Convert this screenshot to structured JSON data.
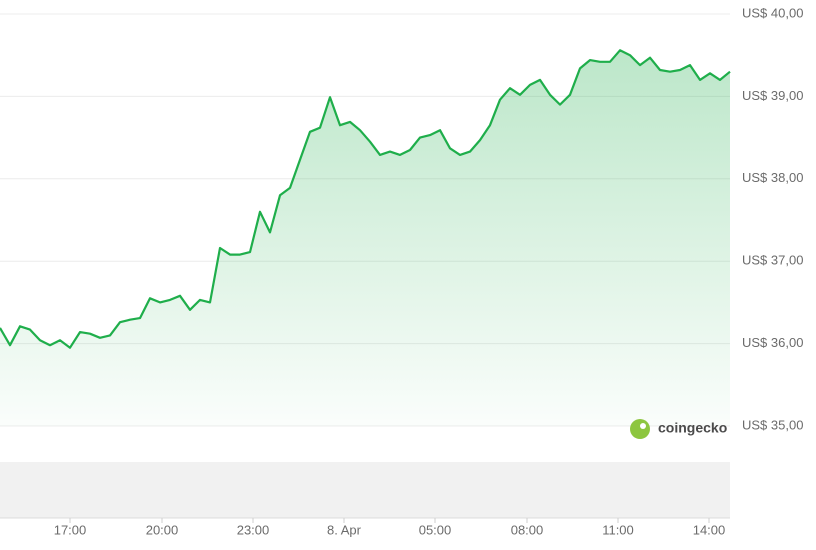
{
  "chart_data": {
    "type": "area",
    "color": "#1fae4b",
    "values": [
      36.19,
      35.98,
      36.21,
      36.17,
      36.04,
      35.98,
      36.04,
      35.95,
      36.14,
      36.12,
      36.07,
      36.1,
      36.26,
      36.29,
      36.31,
      36.55,
      36.5,
      36.53,
      36.58,
      36.41,
      36.53,
      36.5,
      37.16,
      37.08,
      37.08,
      37.11,
      37.6,
      37.35,
      37.8,
      37.89,
      38.23,
      38.57,
      38.62,
      38.99,
      38.65,
      38.69,
      38.59,
      38.45,
      38.29,
      38.33,
      38.29,
      38.35,
      38.5,
      38.53,
      38.59,
      38.37,
      38.29,
      38.33,
      38.47,
      38.65,
      38.96,
      39.1,
      39.02,
      39.14,
      39.2,
      39.02,
      38.9,
      39.02,
      39.34,
      39.44,
      39.42,
      39.42,
      39.56,
      39.5,
      39.38,
      39.47,
      39.32,
      39.3,
      39.32,
      39.38,
      39.2,
      39.28,
      39.2,
      39.3
    ],
    "xlim": [
      0,
      73
    ],
    "xticks": [
      {
        "value": 7,
        "label": "17:00"
      },
      {
        "value": 16.2,
        "label": "20:00"
      },
      {
        "value": 25.3,
        "label": "23:00"
      },
      {
        "value": 34.4,
        "label": "8. Apr"
      },
      {
        "value": 43.5,
        "label": "05:00"
      },
      {
        "value": 52.7,
        "label": "08:00"
      },
      {
        "value": 61.8,
        "label": "11:00"
      },
      {
        "value": 70.9,
        "label": "14:00"
      }
    ],
    "ylim": [
      35,
      40
    ],
    "yticks": [
      {
        "value": 35,
        "label": "US$ 35,00"
      },
      {
        "value": 36,
        "label": "US$ 36,00"
      },
      {
        "value": 37,
        "label": "US$ 37,00"
      },
      {
        "value": 38,
        "label": "US$ 38,00"
      },
      {
        "value": 39,
        "label": "US$ 39,00"
      },
      {
        "value": 40,
        "label": "US$ 40,00"
      }
    ],
    "grid": true,
    "watermark": "coingecko"
  }
}
